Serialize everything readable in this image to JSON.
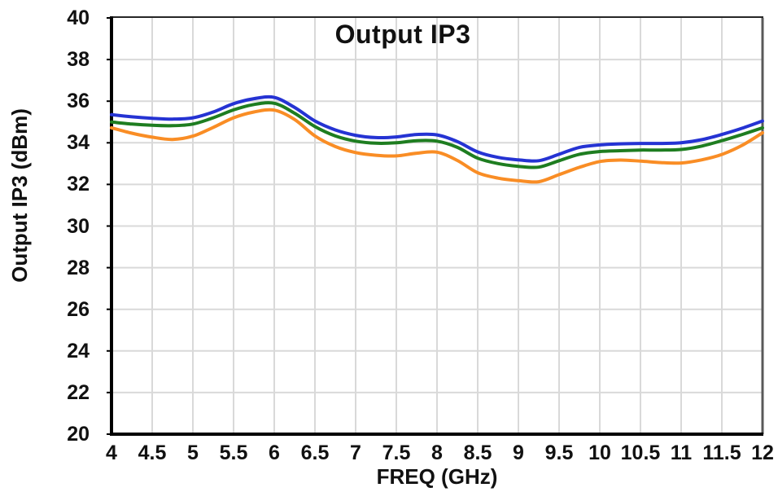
{
  "chart_data": {
    "type": "line",
    "title": "Output IP3",
    "xlabel": "FREQ (GHz)",
    "ylabel": "Output IP3 (dBm)",
    "xlim": [
      4,
      12
    ],
    "ylim": [
      20,
      40
    ],
    "grid": true,
    "legend": "none",
    "x_ticks": [
      "4",
      "4.5",
      "5",
      "5.5",
      "6",
      "6.5",
      "7",
      "7.5",
      "8",
      "8.5",
      "9",
      "9.5",
      "10",
      "10.5",
      "11",
      "11.5",
      "12"
    ],
    "y_ticks": [
      "40",
      "38",
      "36",
      "34",
      "32",
      "30",
      "28",
      "26",
      "24",
      "22",
      "20"
    ],
    "x": [
      4,
      4.25,
      4.5,
      4.75,
      5,
      5.25,
      5.5,
      5.75,
      6,
      6.25,
      6.5,
      6.75,
      7,
      7.25,
      7.5,
      7.75,
      8,
      8.25,
      8.5,
      8.75,
      9,
      9.25,
      9.5,
      9.75,
      10,
      10.25,
      10.5,
      10.75,
      11,
      11.25,
      11.5,
      11.75,
      12
    ],
    "series": [
      {
        "name": "blue-trace",
        "color": "#2533D3",
        "values": [
          35.35,
          35.25,
          35.18,
          35.14,
          35.2,
          35.48,
          35.88,
          36.12,
          36.18,
          35.7,
          35.05,
          34.62,
          34.36,
          34.25,
          34.28,
          34.4,
          34.38,
          34.06,
          33.56,
          33.3,
          33.18,
          33.14,
          33.45,
          33.78,
          33.9,
          33.95,
          33.97,
          33.97,
          34.0,
          34.15,
          34.4,
          34.7,
          35.05
        ]
      },
      {
        "name": "green-trace",
        "color": "#1E7D20",
        "values": [
          35.0,
          34.9,
          34.84,
          34.82,
          34.9,
          35.2,
          35.58,
          35.84,
          35.9,
          35.42,
          34.78,
          34.33,
          34.08,
          33.98,
          34.0,
          34.1,
          34.08,
          33.78,
          33.26,
          33.0,
          32.87,
          32.83,
          33.14,
          33.45,
          33.58,
          33.62,
          33.65,
          33.65,
          33.68,
          33.84,
          34.1,
          34.4,
          34.72
        ]
      },
      {
        "name": "orange-trace",
        "color": "#F98D25",
        "values": [
          34.72,
          34.46,
          34.27,
          34.16,
          34.32,
          34.74,
          35.2,
          35.48,
          35.57,
          35.12,
          34.33,
          33.82,
          33.53,
          33.4,
          33.37,
          33.5,
          33.55,
          33.15,
          32.56,
          32.3,
          32.18,
          32.13,
          32.47,
          32.82,
          33.1,
          33.17,
          33.12,
          33.05,
          33.03,
          33.18,
          33.44,
          33.88,
          34.48
        ]
      }
    ],
    "colors": {
      "gridline": "#D9D9D9",
      "axis": "#000000",
      "top_border": "#262626",
      "right_border": "#595959",
      "background": "#FFFFFF",
      "text": "#111111"
    }
  }
}
